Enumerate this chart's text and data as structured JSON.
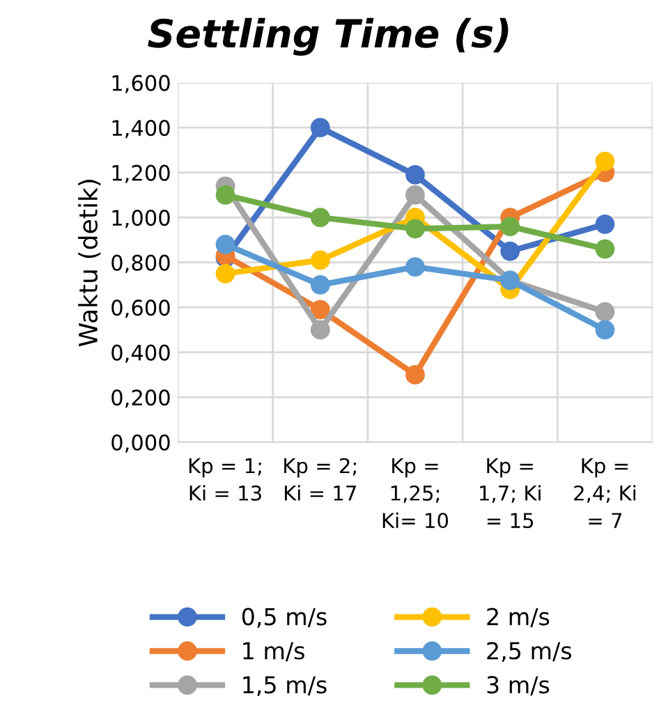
{
  "chart_data": {
    "type": "line",
    "title": "Settling Time (s)",
    "ylabel": "Waktu (detik)",
    "categories": [
      "Kp = 1; Ki = 13",
      "Kp = 2; Ki = 17",
      "Kp = 1,25; Ki= 10",
      "Kp = 1,7; Ki = 15",
      "Kp = 2,4; Ki = 7"
    ],
    "series": [
      {
        "name": "0,5 m/s",
        "color": "#4472c4",
        "values": [
          0.82,
          1.4,
          1.19,
          0.85,
          0.97
        ]
      },
      {
        "name": "1 m/s",
        "color": "#ed7d31",
        "values": [
          0.83,
          0.59,
          0.3,
          1.0,
          1.2
        ]
      },
      {
        "name": "1,5 m/s",
        "color": "#a5a5a5",
        "values": [
          1.14,
          0.5,
          1.1,
          0.72,
          0.58
        ]
      },
      {
        "name": "2 m/s",
        "color": "#ffc000",
        "values": [
          0.75,
          0.81,
          1.0,
          0.68,
          1.25
        ]
      },
      {
        "name": "2,5 m/s",
        "color": "#5b9bd5",
        "values": [
          0.88,
          0.7,
          0.78,
          0.72,
          0.5
        ]
      },
      {
        "name": "3 m/s",
        "color": "#70ad47",
        "values": [
          1.1,
          1.0,
          0.95,
          0.96,
          0.86
        ]
      }
    ],
    "ylim": [
      0,
      1.6
    ],
    "yticks": [
      {
        "value": 0,
        "label": "0,000"
      },
      {
        "value": 0.2,
        "label": "0,200"
      },
      {
        "value": 0.4,
        "label": "0,400"
      },
      {
        "value": 0.6,
        "label": "0,600"
      },
      {
        "value": 0.8,
        "label": "0,800"
      },
      {
        "value": 1.0,
        "label": "1,000"
      },
      {
        "value": 1.2,
        "label": "1,200"
      },
      {
        "value": 1.4,
        "label": "1,400"
      },
      {
        "value": 1.6,
        "label": "1,600"
      }
    ],
    "grid": true,
    "legend": "bottom",
    "marker": "circle",
    "line_style": "solid"
  }
}
